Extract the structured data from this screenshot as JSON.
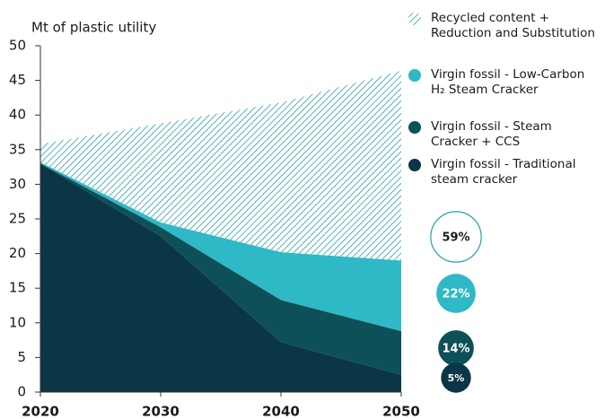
{
  "chart_data": {
    "type": "stacked_area",
    "ylabel": "Mt of plastic utility",
    "x": [
      2020,
      2030,
      2040,
      2050
    ],
    "xlim": [
      2020,
      2050
    ],
    "xticks": [
      2020,
      2030,
      2040,
      2050
    ],
    "ylim": [
      0,
      50
    ],
    "yticks": [
      0,
      5,
      10,
      15,
      20,
      25,
      30,
      35,
      40,
      45,
      50
    ],
    "series": [
      {
        "name": "Recycled content + Reduction and Substitution",
        "color": "#2a9ea8",
        "hatch": true,
        "values": [
          2.6,
          14.3,
          21.6,
          27.4
        ]
      },
      {
        "name": "Virgin fossil - Low-Carbon H₂ Steam Cracker",
        "color": "#2fb8c6",
        "values": [
          0.2,
          0.7,
          6.9,
          10.2
        ]
      },
      {
        "name": "Virgin fossil - Steam Cracker + CCS",
        "color": "#0d5058",
        "values": [
          0,
          1.3,
          6.1,
          6.3
        ]
      },
      {
        "name": "Virgin fossil - Traditional steam cracker",
        "color": "#0a3646",
        "values": [
          33,
          22.5,
          7.2,
          2.5
        ]
      }
    ],
    "shares": {
      "values": [
        59,
        22,
        14,
        5
      ],
      "value_labels": [
        "59%",
        "22%",
        "14%",
        "5%"
      ]
    }
  }
}
